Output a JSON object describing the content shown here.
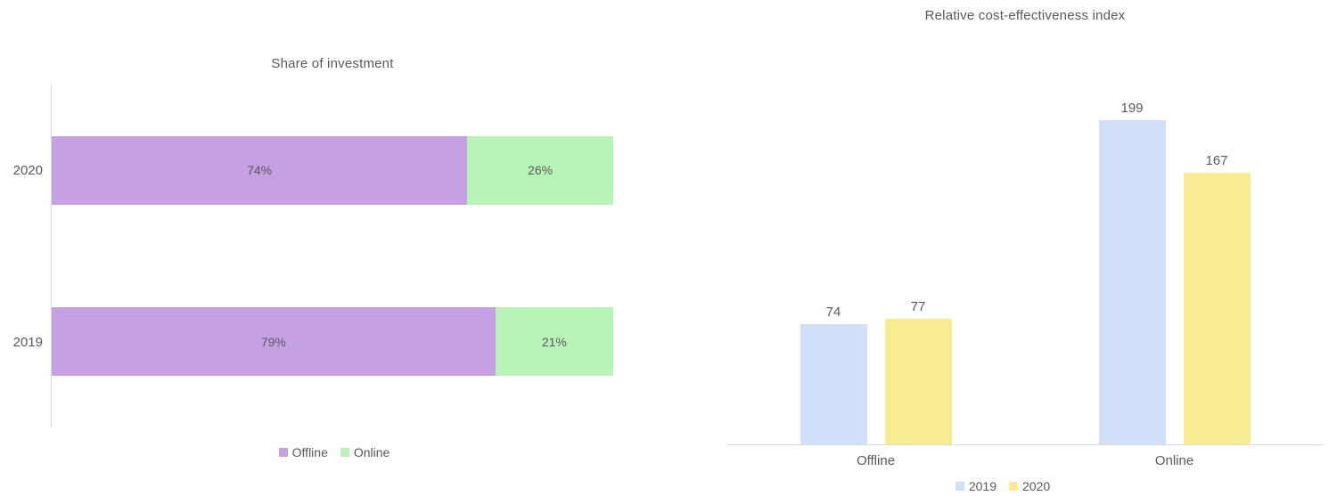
{
  "chart_data": [
    {
      "type": "bar",
      "orientation": "horizontal",
      "stacked": true,
      "title": "Share of investment",
      "categories": [
        "2020",
        "2019"
      ],
      "series": [
        {
          "name": "Offline",
          "values": [
            74,
            79
          ],
          "color": "#c5a0e3"
        },
        {
          "name": "Online",
          "values": [
            26,
            21
          ],
          "color": "#b8f3b8"
        }
      ],
      "value_format": "percent",
      "xlim": [
        0,
        100
      ],
      "grid": false,
      "legend_position": "bottom"
    },
    {
      "type": "bar",
      "orientation": "vertical",
      "grouped": true,
      "title": "Relative cost-effectiveness index",
      "categories": [
        "Offline",
        "Online"
      ],
      "series": [
        {
          "name": "2019",
          "values": [
            74,
            199
          ],
          "color": "#cfe0f8"
        },
        {
          "name": "2020",
          "values": [
            77,
            167
          ],
          "color": "#f8ec93"
        }
      ],
      "value_format": "number",
      "ylim": [
        0,
        220
      ],
      "grid": false,
      "legend_position": "bottom"
    }
  ]
}
